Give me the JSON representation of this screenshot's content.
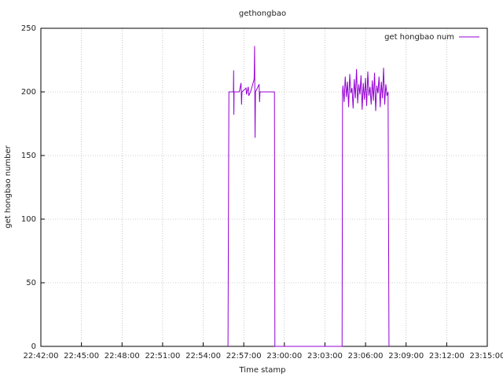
{
  "chart_data": {
    "type": "line",
    "title": "gethongbao",
    "x_label": "Time stamp",
    "y_label": "get hongbao number",
    "x": [
      "22:55:50",
      "22:55:52",
      "22:55:54",
      "22:56:14",
      "22:56:15",
      "22:56:16",
      "22:56:17",
      "22:56:40",
      "22:56:48",
      "22:56:50",
      "22:56:52",
      "22:57:10",
      "22:57:12",
      "22:57:20",
      "22:57:22",
      "22:57:30",
      "22:57:46",
      "22:57:48",
      "22:57:50",
      "22:57:52",
      "22:58:08",
      "22:58:10",
      "22:58:12",
      "22:59:16",
      "22:59:18",
      "23:04:16",
      "23:04:18",
      "23:04:20",
      "23:04:25",
      "23:04:30",
      "23:04:35",
      "23:04:40",
      "23:04:45",
      "23:04:50",
      "23:04:55",
      "23:05:00",
      "23:05:05",
      "23:05:10",
      "23:05:15",
      "23:05:20",
      "23:05:25",
      "23:05:30",
      "23:05:35",
      "23:05:40",
      "23:05:45",
      "23:05:50",
      "23:05:55",
      "23:06:00",
      "23:06:05",
      "23:06:10",
      "23:06:15",
      "23:06:20",
      "23:06:25",
      "23:06:30",
      "23:06:35",
      "23:06:40",
      "23:06:45",
      "23:06:50",
      "23:06:55",
      "23:07:00",
      "23:07:05",
      "23:07:10",
      "23:07:15",
      "23:07:20",
      "23:07:25",
      "23:07:30",
      "23:07:35",
      "23:07:40",
      "23:07:44"
    ],
    "series": [
      {
        "name": "get hongbao num",
        "color": "#9400d3",
        "values": [
          0,
          100,
          200,
          200,
          217,
          182,
          200,
          200,
          207,
          190,
          200,
          203,
          198,
          204,
          197,
          200,
          210,
          236,
          164,
          200,
          206,
          192,
          200,
          200,
          0,
          0,
          200,
          205,
          192,
          212,
          196,
          208,
          188,
          214,
          199,
          203,
          187,
          210,
          195,
          218,
          191,
          206,
          198,
          213,
          186,
          207,
          194,
          211,
          189,
          216,
          197,
          204,
          190,
          209,
          193,
          215,
          185,
          205,
          199,
          212,
          188,
          208,
          195,
          219,
          190,
          206,
          197,
          200,
          0
        ]
      }
    ],
    "xlim": [
      "22:42:00",
      "23:15:00"
    ],
    "xticks": [
      "22:42:00",
      "22:45:00",
      "22:48:00",
      "22:51:00",
      "22:54:00",
      "22:57:00",
      "23:00:00",
      "23:03:00",
      "23:06:00",
      "23:09:00",
      "23:12:00",
      "23:15:00"
    ],
    "ylim": [
      0,
      250
    ],
    "yticks": [
      0,
      50,
      100,
      150,
      200,
      250
    ],
    "grid": true,
    "legend": "top-right"
  }
}
